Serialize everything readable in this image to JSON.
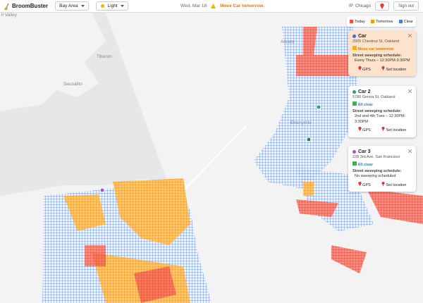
{
  "header": {
    "brand": "BroomBuster",
    "region": "Bay Area",
    "theme": "Light",
    "date": "Wed, Mar 18",
    "alert": "Move Car tomorrow.",
    "ip": "IP: Chicago",
    "sign_out": "Sign out"
  },
  "legend": [
    "Today",
    "Tomorrow",
    "Clear"
  ],
  "map_labels": [
    "ll Valley",
    "Tiburon",
    "Sausalito",
    "Albany",
    "Emeryville"
  ],
  "cars": [
    {
      "name": "Car",
      "address": "2905 Chestnut St, Oakland",
      "status": "Move car tomorrow",
      "schedule_label": "Street sweeping schedule:",
      "schedule": "Every Thurs – 12:30PM-3:30PM",
      "gps": "GPS",
      "set_location": "Set location"
    },
    {
      "name": "Car 2",
      "address": "5780 Genoa St, Oakland",
      "status": "All clear",
      "schedule_label": "Street sweeping schedule:",
      "schedule": "2nd and 4th Tues – 12:30PM-3:30PM",
      "gps": "GPS",
      "set_location": "Set location"
    },
    {
      "name": "Car 3",
      "address": "228 3rd Ave, San Francisco",
      "status": "All clear",
      "schedule_label": "Street sweeping schedule:",
      "schedule": "No sweeping scheduled",
      "gps": "GPS",
      "set_location": "Set location"
    }
  ]
}
